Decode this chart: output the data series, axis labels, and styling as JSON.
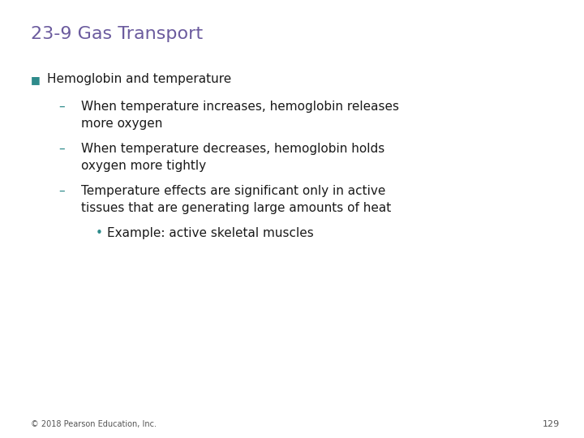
{
  "title": "23-9 Gas Transport",
  "title_color": "#6B5B9E",
  "title_fontsize": 16,
  "background_color": "#FFFFFF",
  "footer": "© 2018 Pearson Education, Inc.",
  "page_number": "129",
  "accent_color": "#2E8B8B",
  "body_color": "#1a1a1a",
  "bullet1": "Hemoglobin and temperature",
  "dash1_line1": "When temperature increases, hemoglobin releases",
  "dash1_line2": "more oxygen",
  "dash2_line1": "When temperature decreases, hemoglobin holds",
  "dash2_line2": "oxygen more tightly",
  "dash3_line1": "Temperature effects are significant only in active",
  "dash3_line2": "tissues that are generating large amounts of heat",
  "sub_bullet": "Example: active skeletal muscles",
  "font_family": "DejaVu Sans",
  "body_fontsize": 11,
  "bullet_fontsize": 11,
  "footer_fontsize": 7,
  "page_fontsize": 8
}
